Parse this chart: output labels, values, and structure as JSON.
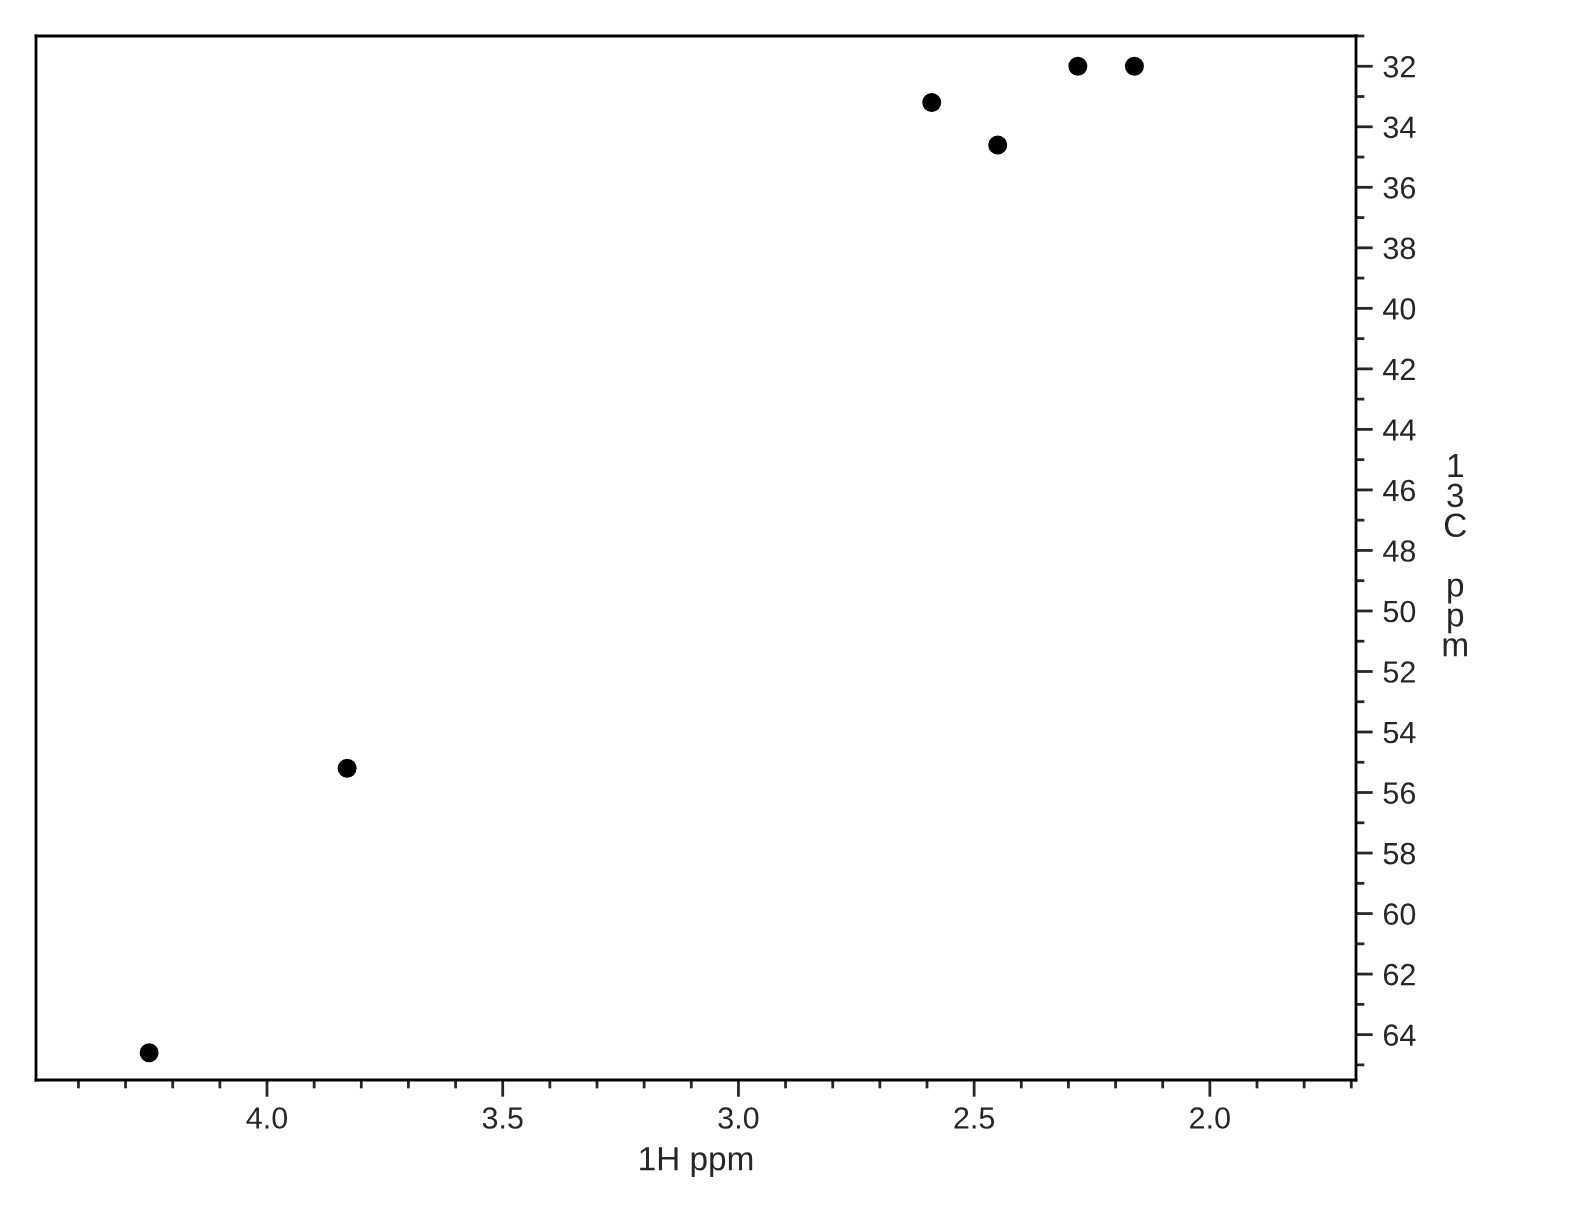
{
  "chart_data": {
    "type": "scatter",
    "xlabel": "1H ppm",
    "ylabel": "13C ppm",
    "x": [
      4.25,
      3.83,
      2.59,
      2.45,
      2.28,
      2.16
    ],
    "series": [
      {
        "color": "#000000",
        "values": [
          64.6,
          55.2,
          33.2,
          34.6,
          32.0,
          32.0
        ]
      }
    ],
    "marker": "circle",
    "grid": false,
    "xlim": [
      4.49,
      1.69
    ],
    "ylim": [
      65.5,
      31.0
    ],
    "xticks": [
      {
        "value": 4.4,
        "label": null
      },
      {
        "value": 4.3,
        "label": null
      },
      {
        "value": 4.2,
        "label": null
      },
      {
        "value": 4.1,
        "label": null
      },
      {
        "value": 4.0,
        "label": "4.0"
      },
      {
        "value": 3.9,
        "label": null
      },
      {
        "value": 3.8,
        "label": null
      },
      {
        "value": 3.7,
        "label": null
      },
      {
        "value": 3.6,
        "label": null
      },
      {
        "value": 3.5,
        "label": "3.5"
      },
      {
        "value": 3.4,
        "label": null
      },
      {
        "value": 3.3,
        "label": null
      },
      {
        "value": 3.2,
        "label": null
      },
      {
        "value": 3.1,
        "label": null
      },
      {
        "value": 3.0,
        "label": "3.0"
      },
      {
        "value": 2.9,
        "label": null
      },
      {
        "value": 2.8,
        "label": null
      },
      {
        "value": 2.7,
        "label": null
      },
      {
        "value": 2.6,
        "label": null
      },
      {
        "value": 2.5,
        "label": "2.5"
      },
      {
        "value": 2.4,
        "label": null
      },
      {
        "value": 2.3,
        "label": null
      },
      {
        "value": 2.2,
        "label": null
      },
      {
        "value": 2.1,
        "label": null
      },
      {
        "value": 2.0,
        "label": "2.0"
      },
      {
        "value": 1.9,
        "label": null
      },
      {
        "value": 1.8,
        "label": null
      },
      {
        "value": 1.7,
        "label": null
      }
    ],
    "yticks": [
      {
        "value": 31,
        "label": null
      },
      32,
      {
        "value": 33,
        "label": null
      },
      34,
      {
        "value": 35,
        "label": null
      },
      36,
      {
        "value": 37,
        "label": null
      },
      38,
      {
        "value": 39,
        "label": null
      },
      40,
      {
        "value": 41,
        "label": null
      },
      42,
      {
        "value": 43,
        "label": null
      },
      44,
      {
        "value": 45,
        "label": null
      },
      46,
      {
        "value": 47,
        "label": null
      },
      48,
      {
        "value": 49,
        "label": null
      },
      50,
      {
        "value": 51,
        "label": null
      },
      52,
      {
        "value": 53,
        "label": null
      },
      54,
      {
        "value": 55,
        "label": null
      },
      56,
      {
        "value": 57,
        "label": null
      },
      58,
      {
        "value": 59,
        "label": null
      },
      60,
      {
        "value": 61,
        "label": null
      },
      62,
      {
        "value": 63,
        "label": null
      },
      64,
      {
        "value": 65,
        "label": null
      }
    ]
  }
}
